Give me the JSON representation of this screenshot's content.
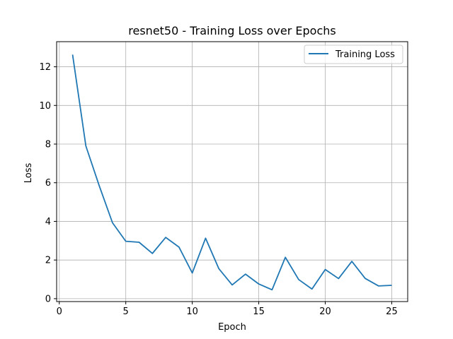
{
  "chart_data": {
    "type": "line",
    "title": "resnet50 - Training Loss over Epochs",
    "xlabel": "Epoch",
    "ylabel": "Loss",
    "xlim": [
      -0.2,
      26.2
    ],
    "ylim": [
      -0.15,
      13.3
    ],
    "xticks": [
      0,
      5,
      10,
      15,
      20,
      25
    ],
    "yticks": [
      0,
      2,
      4,
      6,
      8,
      10,
      12
    ],
    "grid": true,
    "legend_position": "top-right",
    "series": [
      {
        "name": "Training Loss",
        "color": "#1f77b4",
        "x": [
          1,
          2,
          3,
          4,
          5,
          6,
          7,
          8,
          9,
          10,
          11,
          12,
          13,
          14,
          15,
          16,
          17,
          18,
          19,
          20,
          21,
          22,
          23,
          24,
          25
        ],
        "y": [
          12.63,
          7.9,
          5.85,
          3.93,
          2.97,
          2.92,
          2.34,
          3.17,
          2.67,
          1.33,
          3.13,
          1.55,
          0.71,
          1.27,
          0.76,
          0.46,
          2.14,
          0.99,
          0.5,
          1.51,
          1.04,
          1.93,
          1.05,
          0.66,
          0.69
        ]
      }
    ]
  }
}
